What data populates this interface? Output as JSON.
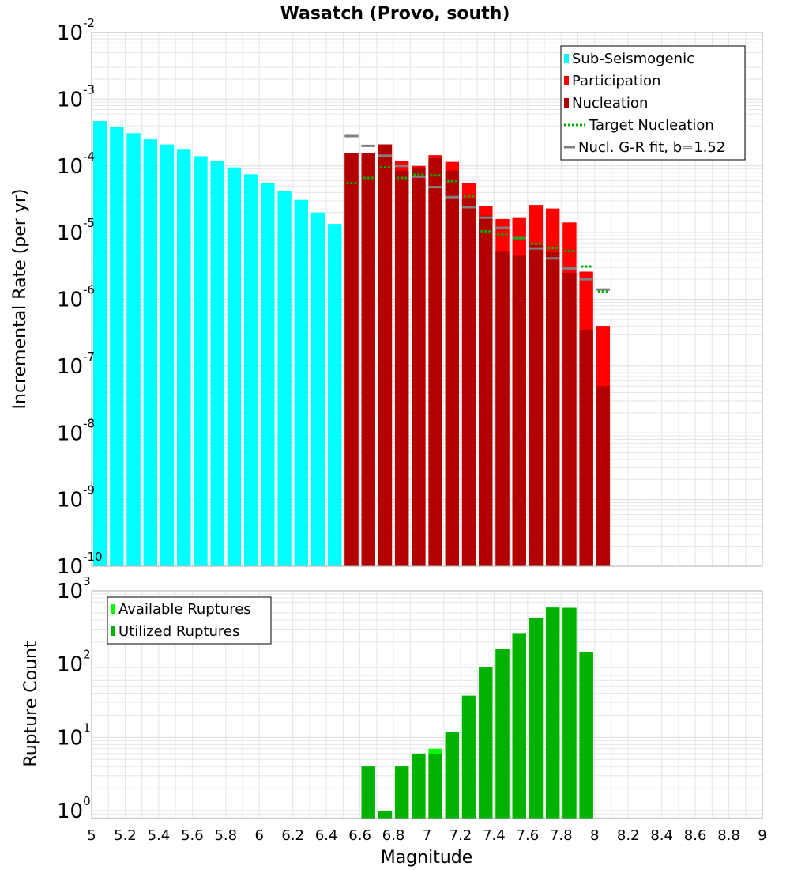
{
  "chart_data": [
    {
      "type": "bar",
      "title": "Wasatch (Provo, south)",
      "xlabel": "Magnitude",
      "ylabel": "Incremental Rate (per yr)",
      "yscale": "log",
      "ylim": [
        1e-10,
        0.01
      ],
      "xlim": [
        5,
        9
      ],
      "y_tick_exponents": [
        "-10",
        "-9",
        "-8",
        "-7",
        "-6",
        "-5",
        "-4",
        "-3",
        "-2"
      ],
      "y_tick_base": "10",
      "grid": true,
      "legend_position": "top-right",
      "legend": [
        {
          "label": "Sub-Seismogenic",
          "kind": "bar",
          "color": "#00ffff"
        },
        {
          "label": "Participation",
          "kind": "bar",
          "color": "#ff0000"
        },
        {
          "label": "Nucleation",
          "kind": "bar",
          "color": "#b20000"
        },
        {
          "label": "Target Nucleation",
          "kind": "dotted",
          "color": "#00b200"
        },
        {
          "label": "Nucl. G-R fit, b=1.52",
          "kind": "line",
          "color": "#808080"
        }
      ],
      "series": [
        {
          "name": "Sub-Seismogenic",
          "color": "#00ffff",
          "x": [
            5.05,
            5.15,
            5.25,
            5.35,
            5.45,
            5.55,
            5.65,
            5.75,
            5.85,
            5.95,
            6.05,
            6.15,
            6.25,
            6.35,
            6.45
          ],
          "values": [
            0.00047,
            0.00038,
            0.00031,
            0.00025,
            0.00021,
            0.000175,
            0.00014,
            0.000118,
            9.5e-05,
            7.5e-05,
            5.5e-05,
            4.2e-05,
            3.1e-05,
            2e-05,
            1.35e-05
          ]
        },
        {
          "name": "Participation",
          "color": "#ff0000",
          "x": [
            6.55,
            6.65,
            6.75,
            6.85,
            6.95,
            7.05,
            7.15,
            7.25,
            7.35,
            7.45,
            7.55,
            7.65,
            7.75,
            7.85,
            7.95,
            8.05
          ],
          "values": [
            0.000155,
            0.000155,
            0.00021,
            0.000118,
            0.0001,
            0.000145,
            0.000115,
            5.5e-05,
            2.5e-05,
            1.6e-05,
            1.7e-05,
            2.6e-05,
            2.3e-05,
            1.42e-05,
            2.6e-06,
            4e-07
          ]
        },
        {
          "name": "Nucleation",
          "color": "#b20000",
          "x": [
            6.55,
            6.65,
            6.75,
            6.85,
            6.95,
            7.05,
            7.15,
            7.25,
            7.35,
            7.45,
            7.55,
            7.65,
            7.75,
            7.85,
            7.95,
            8.05
          ],
          "values": [
            0.000155,
            0.000155,
            0.00021,
            8.5e-05,
            9.5e-05,
            0.00013,
            8.5e-05,
            3.3e-05,
            1.8e-05,
            5.3e-06,
            4.5e-06,
            6.5e-06,
            5.2e-06,
            2.5e-06,
            3.5e-07,
            5e-08
          ]
        },
        {
          "name": "Target Nucleation",
          "color": "#00b200",
          "x": [
            6.55,
            6.65,
            6.75,
            6.85,
            6.95,
            7.05,
            7.15,
            7.25,
            7.35,
            7.45,
            7.55,
            7.65,
            7.75,
            7.85,
            7.95,
            8.05
          ],
          "values": [
            5.5e-05,
            6.6e-05,
            9.5e-05,
            6.6e-05,
            7.4e-05,
            7.2e-05,
            5.9e-05,
            3.5e-05,
            1.05e-05,
            9.3e-06,
            8.2e-06,
            6.8e-06,
            5.9e-06,
            5.3e-06,
            3.1e-06,
            1.3e-06
          ]
        },
        {
          "name": "Nucl. G-R fit, b=1.52",
          "color": "#808080",
          "x": [
            6.55,
            6.65,
            6.75,
            6.85,
            6.95,
            7.05,
            7.15,
            7.25,
            7.35,
            7.45,
            7.55,
            7.65,
            7.75,
            7.85,
            7.95,
            8.05
          ],
          "values": [
            0.00028,
            0.0002,
            0.000142,
            0.0001,
            6.9e-05,
            4.8e-05,
            3.4e-05,
            2.4e-05,
            1.68e-05,
            1.18e-05,
            8.3e-06,
            5.8e-06,
            4.1e-06,
            2.9e-06,
            2e-06,
            1.4e-06
          ]
        }
      ]
    },
    {
      "type": "bar",
      "title": "",
      "xlabel": "Magnitude",
      "ylabel": "Rupture Count",
      "yscale": "log",
      "ylim": [
        0.78,
        1000
      ],
      "xlim": [
        5,
        9
      ],
      "y_tick_exponents": [
        "0",
        "1",
        "2",
        "3"
      ],
      "y_tick_base": "10",
      "grid": true,
      "legend_position": "top-left",
      "legend": [
        {
          "label": "Available Ruptures",
          "kind": "bar",
          "color": "#00ff00"
        },
        {
          "label": "Utilized Ruptures",
          "kind": "bar",
          "color": "#00b200"
        }
      ],
      "series": [
        {
          "name": "Available Ruptures",
          "color": "#00ff00",
          "x": [
            6.65,
            6.75,
            6.85,
            6.95,
            7.05,
            7.15,
            7.25,
            7.35,
            7.45,
            7.55,
            7.65,
            7.75,
            7.85,
            7.95
          ],
          "values": [
            4,
            1,
            4,
            6,
            7,
            12,
            37,
            92,
            160,
            265,
            430,
            590,
            585,
            145
          ]
        },
        {
          "name": "Utilized Ruptures",
          "color": "#00b200",
          "x": [
            6.65,
            6.75,
            6.85,
            6.95,
            7.05,
            7.15,
            7.25,
            7.35,
            7.45,
            7.55,
            7.65,
            7.75,
            7.85,
            7.95
          ],
          "values": [
            4,
            1,
            4,
            6,
            6,
            12,
            37,
            92,
            160,
            265,
            430,
            590,
            585,
            145
          ]
        }
      ],
      "x_tick_labels": [
        "5",
        "5.2",
        "5.4",
        "5.6",
        "5.8",
        "6",
        "6.2",
        "6.4",
        "6.6",
        "6.8",
        "7",
        "7.2",
        "7.4",
        "7.6",
        "7.8",
        "8",
        "8.2",
        "8.4",
        "8.6",
        "8.8",
        "9"
      ]
    }
  ]
}
